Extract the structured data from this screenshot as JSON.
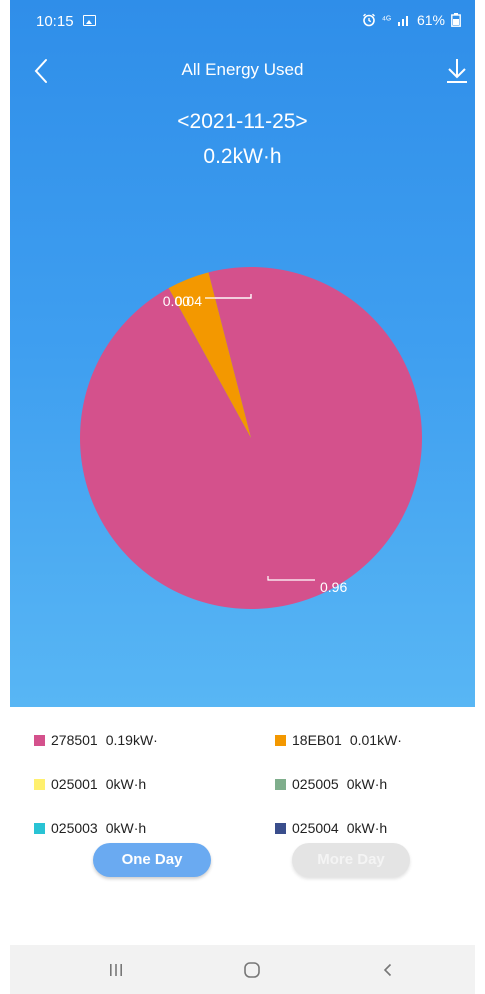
{
  "status_bar": {
    "time": "10:15",
    "signal_text": "⁴ᴳ",
    "battery_percent": "61%"
  },
  "header": {
    "title": "All Energy Used",
    "date": "<2021-11-25>",
    "total": "0.2kW·h"
  },
  "chart_data": {
    "type": "pie",
    "slices": [
      {
        "label": "278501",
        "value": 0.96,
        "color": "#d4518c",
        "data_label": "0.96"
      },
      {
        "label": "18EB01",
        "value": 0.04,
        "color": "#f39800",
        "data_label": "0.04"
      },
      {
        "label": "025001",
        "value": 0.0,
        "color": "#fff06e",
        "data_label": "0.00"
      }
    ]
  },
  "legend": [
    {
      "id": "278501",
      "value": "0.19kW·",
      "color": "#d4518c"
    },
    {
      "id": "18EB01",
      "value": "0.01kW·",
      "color": "#f39800"
    },
    {
      "id": "025001",
      "value": "0kW·h",
      "color": "#fff06e"
    },
    {
      "id": "025005",
      "value": "0kW·h",
      "color": "#7fae8c"
    },
    {
      "id": "025003",
      "value": "0kW·h",
      "color": "#29c3d4"
    },
    {
      "id": "025004",
      "value": "0kW·h",
      "color": "#3a4e8c"
    }
  ],
  "buttons": {
    "one_day": "One Day",
    "more_day": "More Day"
  }
}
